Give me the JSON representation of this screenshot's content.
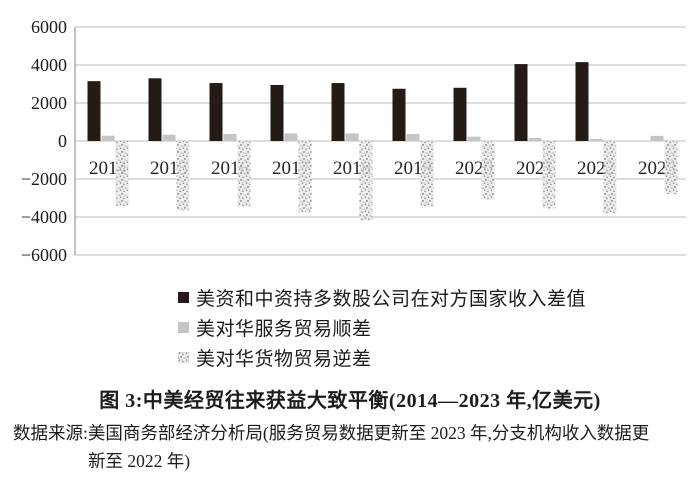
{
  "figure": {
    "title": "图 3:中美经贸往来获益大致平衡(2014—2023 年,亿美元)",
    "source_line1": "数据来源:美国商务部经济分析局(服务贸易数据更新至 2023 年,分支机构收入数据更",
    "source_line2": "新至 2022 年)"
  },
  "legend": {
    "items": [
      {
        "label": "美资和中资持多数股公司在对方国家收入差值",
        "swatch": "black-square"
      },
      {
        "label": "美对华服务贸易顺差",
        "swatch": "gray-square"
      },
      {
        "label": "美对华货物贸易逆差",
        "swatch": "speckled-square"
      }
    ]
  },
  "colors": {
    "bar_black": "#241a16",
    "bar_gray": "#c5c5c5",
    "speckle_base": "#ebebeb",
    "gridline": "#bdbdbd",
    "axis": "#9a9a9a",
    "text": "#1c1c1c"
  },
  "chart_data": {
    "type": "bar",
    "title": "图 3:中美经贸往来获益大致平衡(2014—2023 年,亿美元)",
    "categories": [
      "2014",
      "2015",
      "2016",
      "2017",
      "2018",
      "2019",
      "2020",
      "2021",
      "2022",
      "2023"
    ],
    "series": [
      {
        "name": "美资和中资持多数股公司在对方国家收入差值",
        "values": [
          3150,
          3300,
          3050,
          2950,
          3050,
          2750,
          2800,
          4050,
          4150,
          null
        ]
      },
      {
        "name": "美对华服务贸易顺差",
        "values": [
          280,
          330,
          370,
          400,
          400,
          370,
          230,
          160,
          110,
          270
        ]
      },
      {
        "name": "美对华货物贸易逆差",
        "values": [
          -3430,
          -3670,
          -3470,
          -3750,
          -4200,
          -3450,
          -3100,
          -3550,
          -3830,
          -2790
        ]
      }
    ],
    "ylim": [
      -6000,
      6000
    ],
    "ytick_step": 2000,
    "ytick_labels": [
      "6000",
      "4000",
      "2000",
      "0",
      "−2000",
      "−4000",
      "−6000"
    ],
    "grid": true,
    "legend_position": "below-left",
    "unit": "亿美元"
  }
}
